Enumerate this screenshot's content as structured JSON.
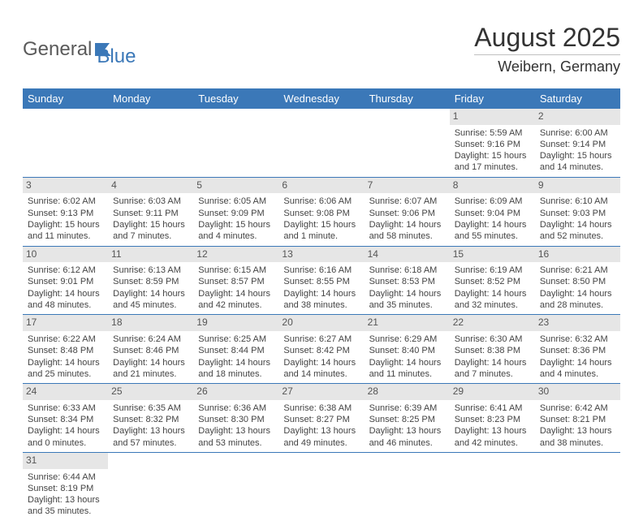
{
  "logo": {
    "text1": "General",
    "text2": "Blue"
  },
  "header": {
    "month": "August 2025",
    "location": "Weibern, Germany"
  },
  "colors": {
    "brand_blue": "#3b78b8",
    "header_row_bg": "#3b78b8",
    "daynum_bg": "#e6e6e6",
    "text": "#333333",
    "cell_text": "#444444",
    "row_border": "#3b78b8"
  },
  "fonts": {
    "title_size": 32,
    "location_size": 18,
    "dayheader_size": 13,
    "cell_size": 11
  },
  "calendar": {
    "day_headers": [
      "Sunday",
      "Monday",
      "Tuesday",
      "Wednesday",
      "Thursday",
      "Friday",
      "Saturday"
    ],
    "first_weekday_index": 5,
    "days": [
      {
        "n": 1,
        "sunrise": "5:59 AM",
        "sunset": "9:16 PM",
        "daylight": "15 hours and 17 minutes."
      },
      {
        "n": 2,
        "sunrise": "6:00 AM",
        "sunset": "9:14 PM",
        "daylight": "15 hours and 14 minutes."
      },
      {
        "n": 3,
        "sunrise": "6:02 AM",
        "sunset": "9:13 PM",
        "daylight": "15 hours and 11 minutes."
      },
      {
        "n": 4,
        "sunrise": "6:03 AM",
        "sunset": "9:11 PM",
        "daylight": "15 hours and 7 minutes."
      },
      {
        "n": 5,
        "sunrise": "6:05 AM",
        "sunset": "9:09 PM",
        "daylight": "15 hours and 4 minutes."
      },
      {
        "n": 6,
        "sunrise": "6:06 AM",
        "sunset": "9:08 PM",
        "daylight": "15 hours and 1 minute."
      },
      {
        "n": 7,
        "sunrise": "6:07 AM",
        "sunset": "9:06 PM",
        "daylight": "14 hours and 58 minutes."
      },
      {
        "n": 8,
        "sunrise": "6:09 AM",
        "sunset": "9:04 PM",
        "daylight": "14 hours and 55 minutes."
      },
      {
        "n": 9,
        "sunrise": "6:10 AM",
        "sunset": "9:03 PM",
        "daylight": "14 hours and 52 minutes."
      },
      {
        "n": 10,
        "sunrise": "6:12 AM",
        "sunset": "9:01 PM",
        "daylight": "14 hours and 48 minutes."
      },
      {
        "n": 11,
        "sunrise": "6:13 AM",
        "sunset": "8:59 PM",
        "daylight": "14 hours and 45 minutes."
      },
      {
        "n": 12,
        "sunrise": "6:15 AM",
        "sunset": "8:57 PM",
        "daylight": "14 hours and 42 minutes."
      },
      {
        "n": 13,
        "sunrise": "6:16 AM",
        "sunset": "8:55 PM",
        "daylight": "14 hours and 38 minutes."
      },
      {
        "n": 14,
        "sunrise": "6:18 AM",
        "sunset": "8:53 PM",
        "daylight": "14 hours and 35 minutes."
      },
      {
        "n": 15,
        "sunrise": "6:19 AM",
        "sunset": "8:52 PM",
        "daylight": "14 hours and 32 minutes."
      },
      {
        "n": 16,
        "sunrise": "6:21 AM",
        "sunset": "8:50 PM",
        "daylight": "14 hours and 28 minutes."
      },
      {
        "n": 17,
        "sunrise": "6:22 AM",
        "sunset": "8:48 PM",
        "daylight": "14 hours and 25 minutes."
      },
      {
        "n": 18,
        "sunrise": "6:24 AM",
        "sunset": "8:46 PM",
        "daylight": "14 hours and 21 minutes."
      },
      {
        "n": 19,
        "sunrise": "6:25 AM",
        "sunset": "8:44 PM",
        "daylight": "14 hours and 18 minutes."
      },
      {
        "n": 20,
        "sunrise": "6:27 AM",
        "sunset": "8:42 PM",
        "daylight": "14 hours and 14 minutes."
      },
      {
        "n": 21,
        "sunrise": "6:29 AM",
        "sunset": "8:40 PM",
        "daylight": "14 hours and 11 minutes."
      },
      {
        "n": 22,
        "sunrise": "6:30 AM",
        "sunset": "8:38 PM",
        "daylight": "14 hours and 7 minutes."
      },
      {
        "n": 23,
        "sunrise": "6:32 AM",
        "sunset": "8:36 PM",
        "daylight": "14 hours and 4 minutes."
      },
      {
        "n": 24,
        "sunrise": "6:33 AM",
        "sunset": "8:34 PM",
        "daylight": "14 hours and 0 minutes."
      },
      {
        "n": 25,
        "sunrise": "6:35 AM",
        "sunset": "8:32 PM",
        "daylight": "13 hours and 57 minutes."
      },
      {
        "n": 26,
        "sunrise": "6:36 AM",
        "sunset": "8:30 PM",
        "daylight": "13 hours and 53 minutes."
      },
      {
        "n": 27,
        "sunrise": "6:38 AM",
        "sunset": "8:27 PM",
        "daylight": "13 hours and 49 minutes."
      },
      {
        "n": 28,
        "sunrise": "6:39 AM",
        "sunset": "8:25 PM",
        "daylight": "13 hours and 46 minutes."
      },
      {
        "n": 29,
        "sunrise": "6:41 AM",
        "sunset": "8:23 PM",
        "daylight": "13 hours and 42 minutes."
      },
      {
        "n": 30,
        "sunrise": "6:42 AM",
        "sunset": "8:21 PM",
        "daylight": "13 hours and 38 minutes."
      },
      {
        "n": 31,
        "sunrise": "6:44 AM",
        "sunset": "8:19 PM",
        "daylight": "13 hours and 35 minutes."
      }
    ],
    "labels": {
      "sunrise_prefix": "Sunrise: ",
      "sunset_prefix": "Sunset: ",
      "daylight_prefix": "Daylight: "
    }
  }
}
